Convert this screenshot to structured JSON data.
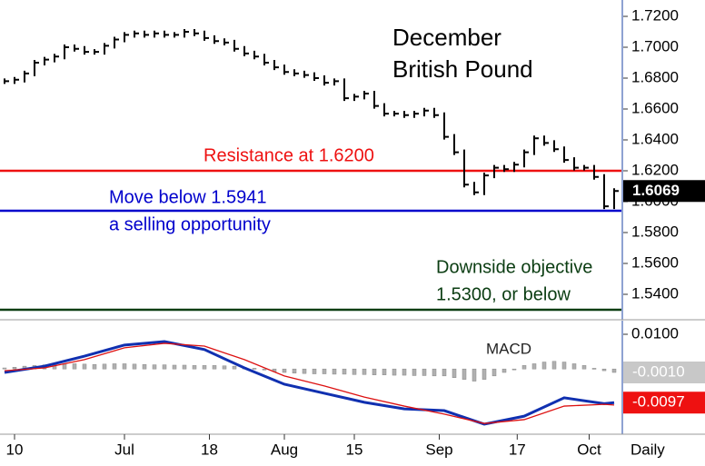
{
  "chart_data": [
    {
      "type": "hlc",
      "title": [
        "December",
        "British Pound"
      ],
      "color": "#000000",
      "values": [
        1.678,
        1.679,
        1.683,
        1.69,
        1.692,
        1.694,
        1.7,
        1.699,
        1.697,
        1.697,
        1.701,
        1.705,
        1.708,
        1.709,
        1.708,
        1.709,
        1.708,
        1.708,
        1.71,
        1.709,
        1.706,
        1.704,
        1.703,
        1.699,
        1.696,
        1.694,
        1.69,
        1.687,
        1.684,
        1.683,
        1.682,
        1.68,
        1.677,
        1.678,
        1.667,
        1.668,
        1.67,
        1.662,
        1.657,
        1.657,
        1.656,
        1.657,
        1.659,
        1.656,
        1.642,
        1.632,
        1.611,
        1.606,
        1.617,
        1.622,
        1.621,
        1.624,
        1.632,
        1.641,
        1.638,
        1.634,
        1.627,
        1.622,
        1.622,
        1.616,
        1.597,
        1.6069
      ],
      "ylim": [
        1.5247,
        1.7306
      ],
      "yticks": [
        {
          "value": 1.54,
          "label": "1.5400"
        },
        {
          "value": 1.56,
          "label": "1.5600"
        },
        {
          "value": 1.58,
          "label": "1.5800"
        },
        {
          "value": 1.6,
          "label": "1.6000"
        },
        {
          "value": 1.62,
          "label": "1.6200"
        },
        {
          "value": 1.64,
          "label": "1.6400"
        },
        {
          "value": 1.66,
          "label": "1.6600"
        },
        {
          "value": 1.68,
          "label": "1.6800"
        },
        {
          "value": 1.7,
          "label": "1.7000"
        },
        {
          "value": 1.72,
          "label": "1.7200"
        }
      ],
      "lines": [
        {
          "value": 1.62,
          "color": "#ee1111",
          "label": [
            "Resistance at 1.6200"
          ]
        },
        {
          "value": 1.5941,
          "color": "#0000cc",
          "label": [
            "Move below 1.5941",
            "a selling opportunity"
          ]
        },
        {
          "value": 1.53,
          "color": "#0b3d12",
          "label": [
            "Downside objective",
            "1.5300, or below"
          ]
        }
      ]
    },
    {
      "type": "macd",
      "label": "MACD",
      "xlabel": "Daily",
      "x": [
        0,
        4,
        8,
        12,
        16,
        20,
        24,
        28,
        32,
        36,
        40,
        44,
        48,
        52,
        56,
        60,
        61
      ],
      "series": [
        {
          "color": "#1030b0",
          "values": [
            -0.001,
            0.0008,
            0.0037,
            0.0069,
            0.0079,
            0.0056,
            0.0003,
            -0.0044,
            -0.007,
            -0.0096,
            -0.0115,
            -0.012,
            -0.0159,
            -0.0136,
            -0.0083,
            -0.01,
            -0.0097
          ]
        },
        {
          "color": "#dd1111",
          "values": [
            -0.0005,
            0.0003,
            0.0027,
            0.0061,
            0.0074,
            0.0066,
            0.0027,
            -0.002,
            -0.0049,
            -0.0081,
            -0.0107,
            -0.013,
            -0.0157,
            -0.0146,
            -0.0107,
            -0.0102,
            -0.0104
          ]
        }
      ],
      "histogram": {
        "color": "#b0b0b0",
        "values": [
          0.0003,
          0.0005,
          0.0008,
          0.001,
          0.0012,
          0.0013,
          0.0014,
          0.0015,
          0.0014,
          0.0013,
          0.0014,
          0.0015,
          0.0015,
          0.0014,
          0.0013,
          0.0012,
          0.0012,
          0.0011,
          0.0011,
          0.001,
          0.001,
          0.001,
          0.0009,
          0.0008,
          0.0005,
          0.0002,
          -0.0003,
          -0.0008,
          -0.001,
          -0.0012,
          -0.0013,
          -0.0014,
          -0.0014,
          -0.0015,
          -0.0015,
          -0.0016,
          -0.0016,
          -0.0017,
          -0.0017,
          -0.0018,
          -0.0018,
          -0.0019,
          -0.0019,
          -0.002,
          -0.002,
          -0.0025,
          -0.003,
          -0.0035,
          -0.003,
          -0.002,
          -0.001,
          0,
          0.001,
          0.0015,
          0.002,
          0.0022,
          0.002,
          0.0015,
          0.001,
          0.0002,
          -0.0005,
          -0.001
        ],
        "last_label": "-0.0010"
      },
      "ylim": [
        -0.0188,
        0.0134
      ],
      "yticks": [
        {
          "value": 0.01,
          "label": "0.0100"
        }
      ],
      "xticks": [
        {
          "value": 1,
          "label": "10"
        },
        {
          "value": 12,
          "label": "Jul"
        },
        {
          "value": 20.5,
          "label": "18"
        },
        {
          "value": 28,
          "label": "Aug"
        },
        {
          "value": 35,
          "label": "15"
        },
        {
          "value": 43.5,
          "label": "Sep"
        },
        {
          "value": 51.3,
          "label": "17"
        },
        {
          "value": 58.5,
          "label": "Oct"
        }
      ]
    }
  ]
}
